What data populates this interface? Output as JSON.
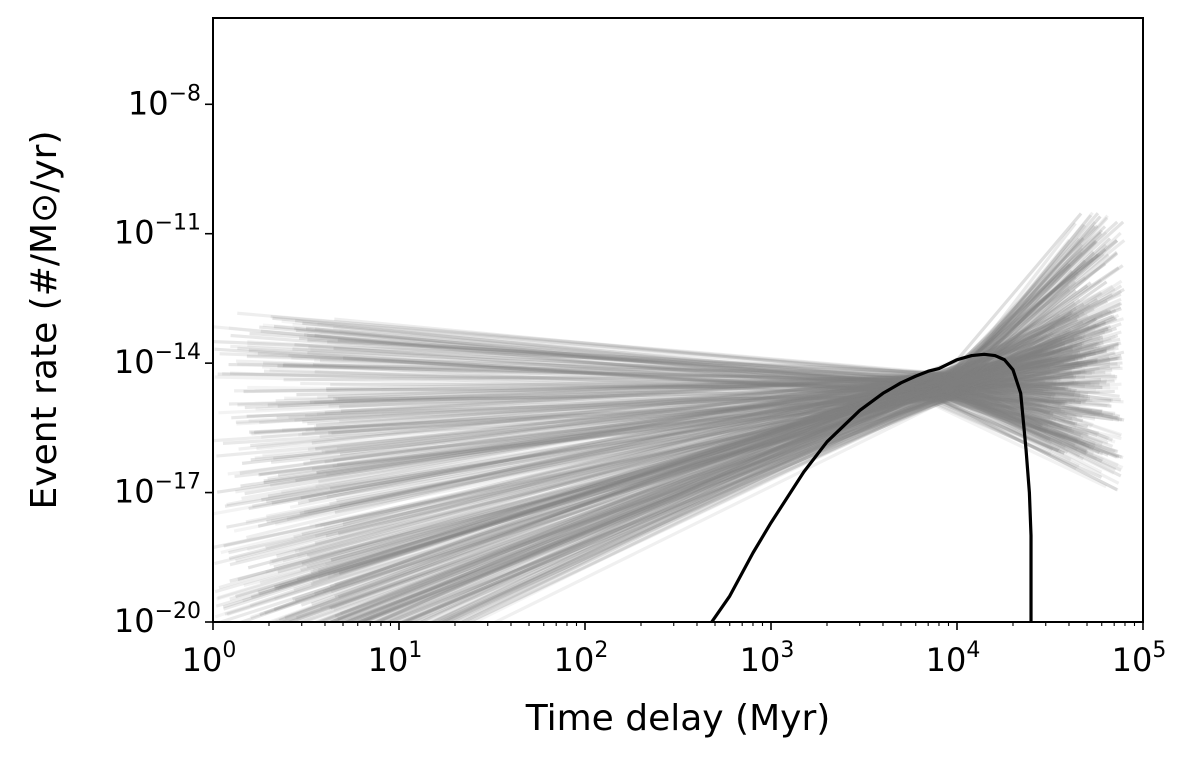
{
  "chart_data": {
    "type": "line",
    "title": "",
    "xlabel": "Time delay (Myr)",
    "ylabel": "Event rate (#/M⊙/yr)",
    "xscale": "log",
    "yscale": "log",
    "xlim": [
      1,
      100000
    ],
    "ylim": [
      1e-20,
      1e-06
    ],
    "grid": false,
    "legend": "none",
    "x_ticks": [
      {
        "base": "10",
        "exp": "0"
      },
      {
        "base": "10",
        "exp": "1"
      },
      {
        "base": "10",
        "exp": "2"
      },
      {
        "base": "10",
        "exp": "3"
      },
      {
        "base": "10",
        "exp": "4"
      },
      {
        "base": "10",
        "exp": "5"
      }
    ],
    "y_ticks": [
      {
        "base": "10",
        "exp": "−8"
      },
      {
        "base": "10",
        "exp": "−11"
      },
      {
        "base": "10",
        "exp": "−14"
      },
      {
        "base": "10",
        "exp": "−17"
      },
      {
        "base": "10",
        "exp": "−20"
      }
    ],
    "colors": {
      "ensemble": "#808080",
      "main": "#000000"
    },
    "series": [
      {
        "style": "main",
        "x": [
          480,
          600,
          800,
          1000,
          1500,
          2000,
          3000,
          4000,
          5000,
          6000,
          7000,
          8000,
          10000,
          12000,
          14000,
          16000,
          18000,
          20000,
          22000,
          23500,
          24500,
          25000,
          25000
        ],
        "y": [
          1e-20,
          4e-20,
          4e-19,
          2e-18,
          3e-17,
          1.5e-16,
          8e-16,
          2e-15,
          3.5e-15,
          5e-15,
          6.5e-15,
          7.5e-15,
          1.2e-14,
          1.5e-14,
          1.6e-14,
          1.5e-14,
          1.2e-14,
          7e-15,
          2e-15,
          1e-16,
          1e-17,
          1e-18,
          1e-20
        ]
      },
      {
        "style": "ensemble",
        "description_of_family": "many semi-transparent grey power-law tracks pivoting near (~8000 Myr, ~3e-15)",
        "x": [
          1,
          8000
        ],
        "y": [
          3e-15,
          3e-15
        ]
      }
    ]
  }
}
